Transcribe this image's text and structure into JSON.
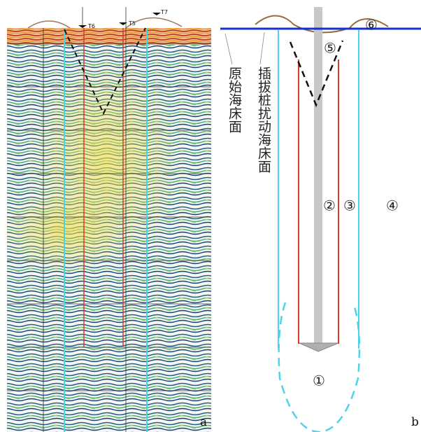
{
  "panels": {
    "a": {
      "label": "a",
      "markers": [
        "T6",
        "T5",
        "T7"
      ]
    },
    "b": {
      "label": "b",
      "annotations": [
        "原始海床面",
        "插拔桩扰动海床面"
      ],
      "zones": [
        "①",
        "②",
        "③",
        "④",
        "⑤",
        "⑥"
      ]
    }
  }
}
